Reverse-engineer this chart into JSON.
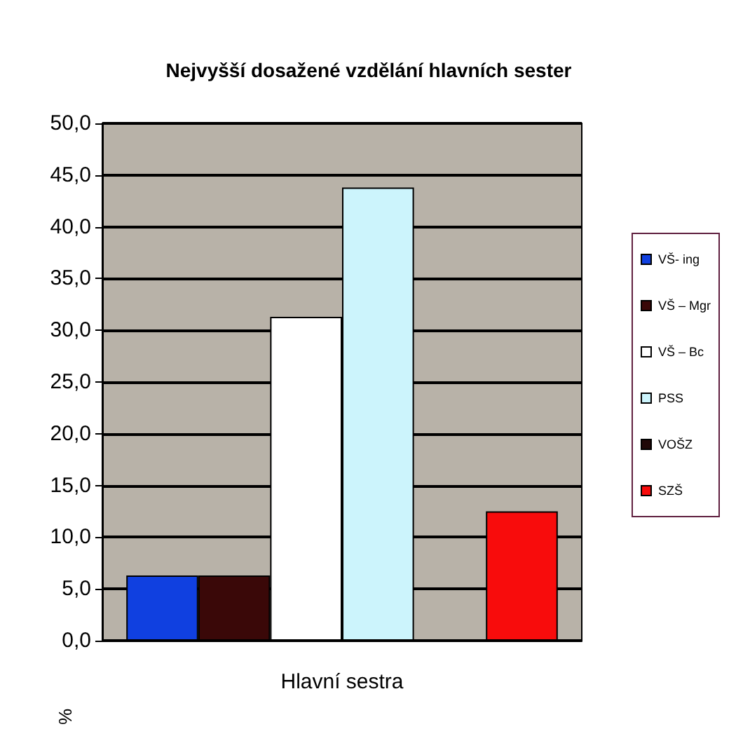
{
  "chart_data": {
    "type": "bar",
    "title": "Nejvyšší dosažené vzdělání hlavních sester",
    "ylabel": "%",
    "categories": [
      "Hlavní sestra"
    ],
    "series": [
      {
        "name": "VŠ- ing",
        "color": "#1040e0",
        "values": [
          6.3
        ]
      },
      {
        "name": "VŠ – Mgr",
        "color": "#3a0808",
        "values": [
          6.3
        ]
      },
      {
        "name": "VŠ – Bc",
        "color": "#ffffff",
        "values": [
          31.3
        ]
      },
      {
        "name": "PSS",
        "color": "#ccf4fc",
        "values": [
          43.8
        ]
      },
      {
        "name": "VOŠZ",
        "color": "#200808",
        "values": [
          null
        ]
      },
      {
        "name": "SZŠ",
        "color": "#f80c0c",
        "values": [
          12.5
        ]
      }
    ],
    "ylim": [
      0,
      50
    ],
    "yticks": [
      {
        "value": 0,
        "label": "0,0"
      },
      {
        "value": 5,
        "label": "5,0"
      },
      {
        "value": 10,
        "label": "10,0"
      },
      {
        "value": 15,
        "label": "15,0"
      },
      {
        "value": 20,
        "label": "20,0"
      },
      {
        "value": 25,
        "label": "25,0"
      },
      {
        "value": 30,
        "label": "30,0"
      },
      {
        "value": 35,
        "label": "35,0"
      },
      {
        "value": 40,
        "label": "40,0"
      },
      {
        "value": 45,
        "label": "45,0"
      },
      {
        "value": 50,
        "label": "50,0"
      }
    ],
    "grid": "y",
    "legend": "right"
  }
}
